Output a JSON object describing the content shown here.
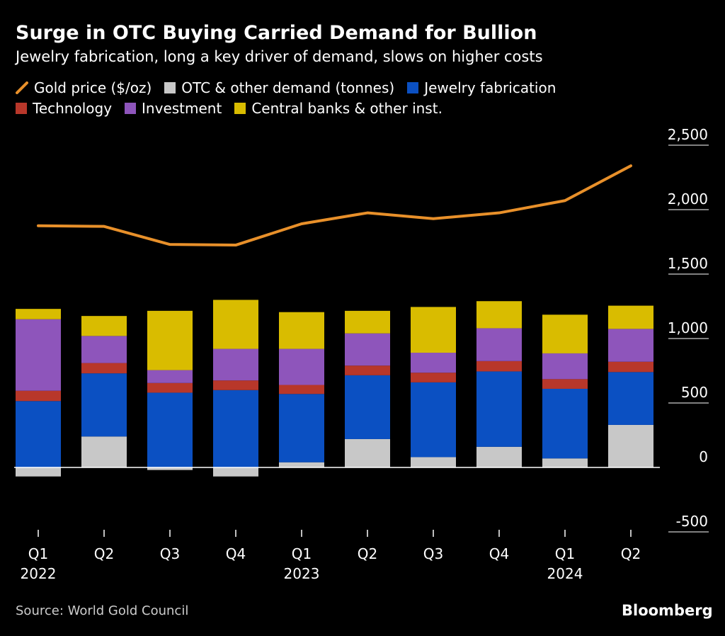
{
  "title": "Surge in OTC Buying Carried Demand for Bullion",
  "subtitle": "Jewelry fabrication, long a key driver of demand, slows on higher costs",
  "legend": [
    {
      "label": "Gold price ($/oz)",
      "color": "#e8902a",
      "kind": "line"
    },
    {
      "label": "OTC & other demand (tonnes)",
      "color": "#c8c8c8",
      "kind": "box"
    },
    {
      "label": "Jewelry fabrication",
      "color": "#0b50c2",
      "kind": "box"
    },
    {
      "label": "Technology",
      "color": "#b8372a",
      "kind": "box"
    },
    {
      "label": "Investment",
      "color": "#8e55bb",
      "kind": "box"
    },
    {
      "label": "Central banks & other inst.",
      "color": "#d9bc00",
      "kind": "box"
    }
  ],
  "source": "Source: World Gold Council",
  "brand": "Bloomberg",
  "chart_data": {
    "type": "bar",
    "stacked": true,
    "categories": [
      "Q1",
      "Q2",
      "Q3",
      "Q4",
      "Q1",
      "Q2",
      "Q3",
      "Q4",
      "Q1",
      "Q2"
    ],
    "year_labels": [
      "2022",
      "",
      "",
      "",
      "2023",
      "",
      "",
      "",
      "2024",
      ""
    ],
    "series": [
      {
        "name": "OTC & other demand (tonnes)",
        "color": "#c8c8c8",
        "values": [
          -70,
          240,
          -20,
          -70,
          40,
          220,
          80,
          160,
          70,
          330
        ]
      },
      {
        "name": "Jewelry fabrication",
        "color": "#0b50c2",
        "values": [
          515,
          490,
          580,
          600,
          530,
          495,
          580,
          585,
          540,
          410
        ]
      },
      {
        "name": "Technology",
        "color": "#b8372a",
        "values": [
          80,
          80,
          75,
          75,
          70,
          75,
          75,
          80,
          75,
          80
        ]
      },
      {
        "name": "Investment",
        "color": "#8e55bb",
        "values": [
          555,
          210,
          100,
          245,
          280,
          250,
          155,
          255,
          200,
          255
        ]
      },
      {
        "name": "Central banks & other inst.",
        "color": "#d9bc00",
        "values": [
          80,
          155,
          460,
          380,
          285,
          175,
          355,
          210,
          300,
          180
        ]
      }
    ],
    "line": {
      "name": "Gold price ($/oz)",
      "color": "#e8902a",
      "values": [
        1875,
        1870,
        1730,
        1725,
        1890,
        1975,
        1930,
        1975,
        2070,
        2340
      ]
    },
    "yticks": [
      2500,
      2000,
      1500,
      1000,
      500,
      0,
      -500
    ],
    "ytick_labels": [
      "2,500",
      "2,000",
      "1,500",
      "1,000",
      "500",
      "0",
      "-500"
    ],
    "ylim": [
      -500,
      2500
    ],
    "axis_side": "right",
    "grid": false,
    "legend_position": "top-left"
  }
}
